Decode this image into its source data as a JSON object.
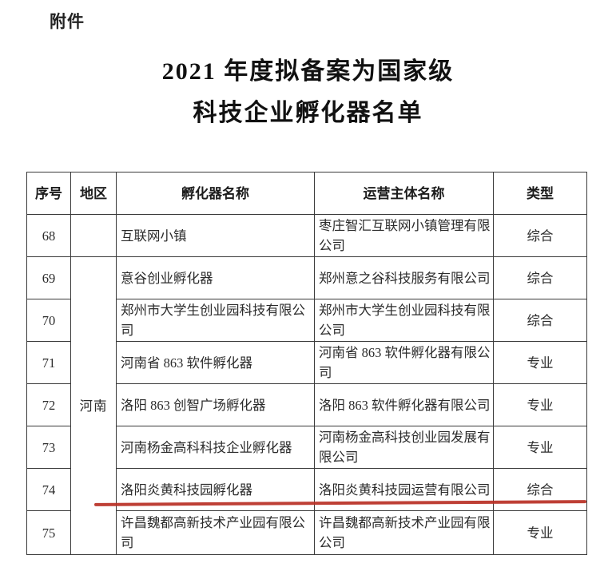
{
  "page": {
    "attachment_label": "附件",
    "title_line1": "2021 年度拟备案为国家级",
    "title_line2": "科技企业孵化器名单"
  },
  "table": {
    "headers": [
      "序号",
      "地区",
      "孵化器名称",
      "运营主体名称",
      "类型"
    ],
    "region_merged_label": "河南",
    "rows": [
      {
        "no": "68",
        "region": "",
        "incubator": "互联网小镇",
        "operator": "枣庄智汇互联网小镇管理有限公司",
        "type": "综合"
      },
      {
        "no": "69",
        "incubator": "意谷创业孵化器",
        "operator": "郑州意之谷科技服务有限公司",
        "type": "综合"
      },
      {
        "no": "70",
        "incubator": "郑州市大学生创业园科技有限公司",
        "operator": "郑州市大学生创业园科技有限公司",
        "type": "综合"
      },
      {
        "no": "71",
        "incubator": "河南省 863 软件孵化器",
        "operator": "河南省 863 软件孵化器有限公司",
        "type": "专业"
      },
      {
        "no": "72",
        "incubator": "洛阳 863 创智广场孵化器",
        "operator": "洛阳 863 软件孵化器有限公司",
        "type": "专业"
      },
      {
        "no": "73",
        "incubator": "河南杨金高科科技企业孵化器",
        "operator": "河南杨金高科技创业园发展有限公司",
        "type": "专业"
      },
      {
        "no": "74",
        "incubator": "洛阳炎黄科技园孵化器",
        "operator": "洛阳炎黄科技园运营有限公司",
        "type": "综合",
        "highlighted": true
      },
      {
        "no": "75",
        "incubator": "许昌魏都高新技术产业园有限公司",
        "operator": "许昌魏都高新技术产业园有限公司",
        "type": "专业"
      }
    ],
    "annotation": {
      "kind": "red-underline",
      "under_row_no": "74",
      "color": "#b92f24"
    }
  }
}
